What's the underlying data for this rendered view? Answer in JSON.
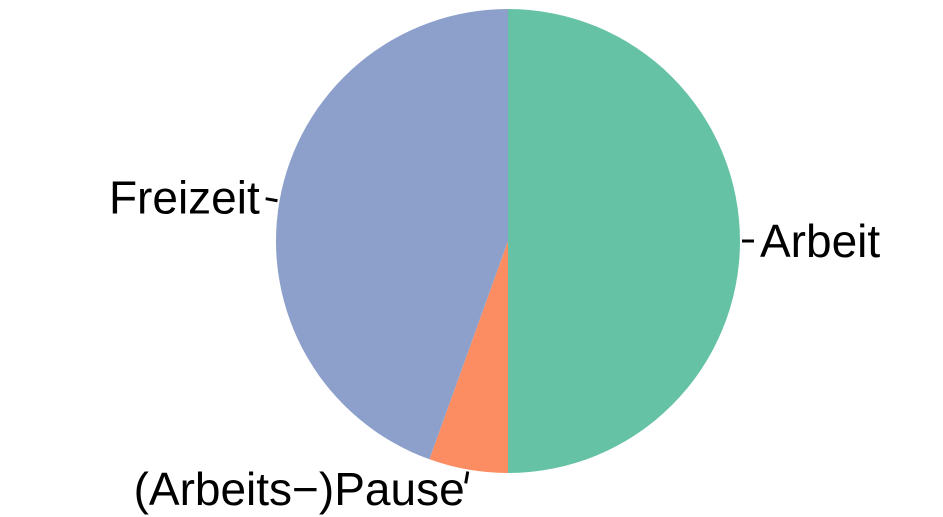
{
  "chart_data": {
    "type": "pie",
    "title": "",
    "start": "12 o'clock",
    "direction": "clockwise",
    "slices": [
      {
        "label": "Arbeit",
        "value": 50,
        "color": "#66c2a5"
      },
      {
        "label": "(Arbeits−)Pause",
        "value": 5.5,
        "color": "#fc8d62"
      },
      {
        "label": "Freizeit",
        "value": 44.5,
        "color": "#8da0cb"
      }
    ]
  }
}
